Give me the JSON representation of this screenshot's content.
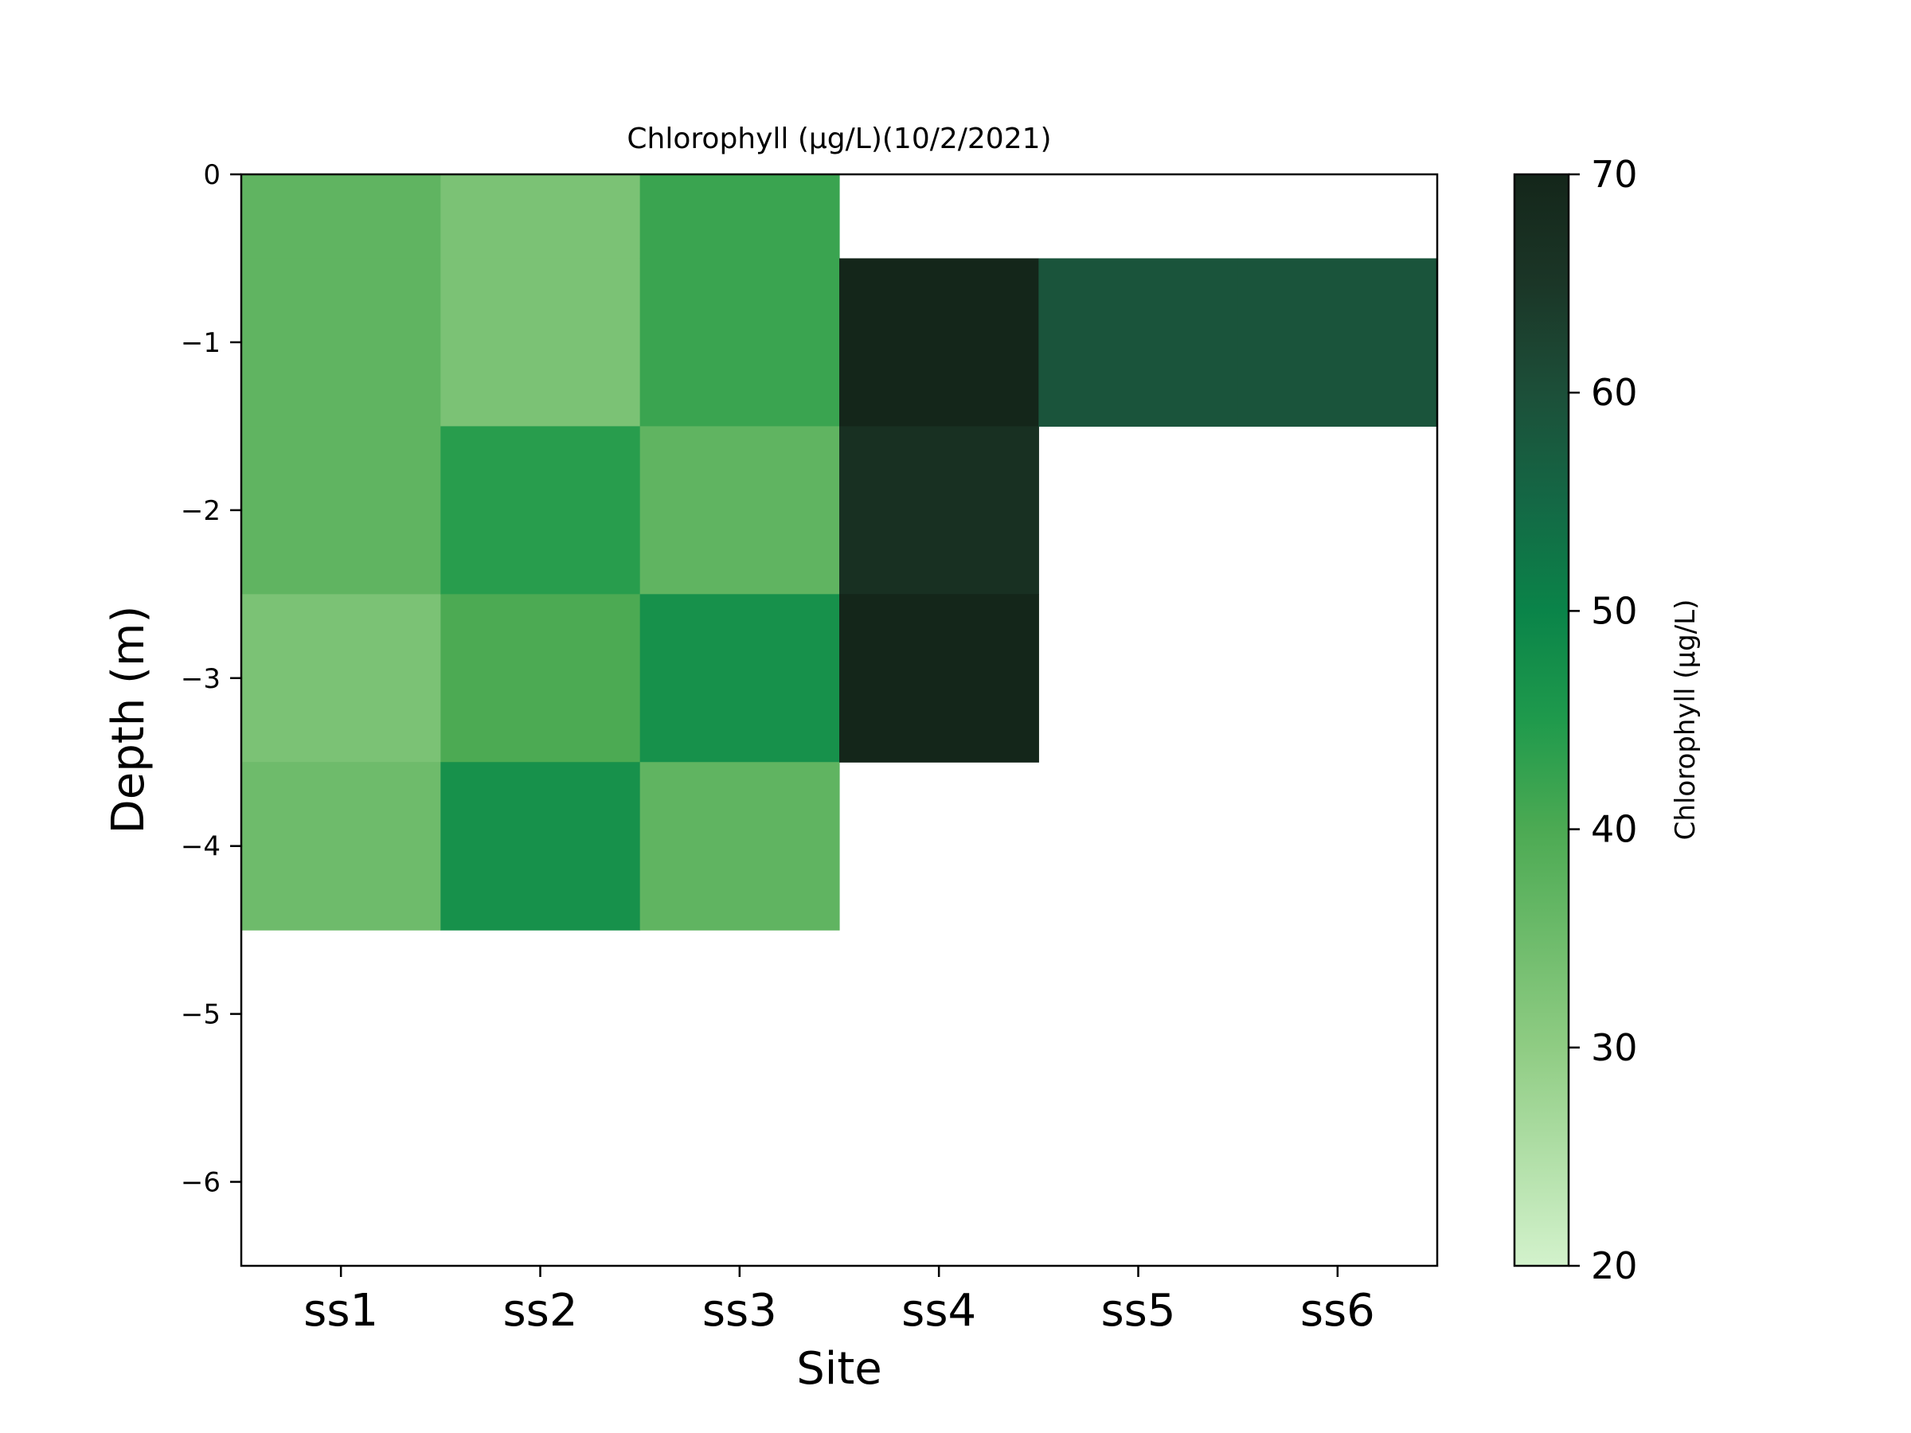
{
  "chart_data": {
    "type": "heatmap",
    "title": "Chlorophyll (µg/L)(10/2/2021)",
    "xlabel": "Site",
    "ylabel": "Depth (m)",
    "x_categories": [
      "ss1",
      "ss2",
      "ss3",
      "ss4",
      "ss5",
      "ss6"
    ],
    "y_ticks": [
      0,
      -1,
      -2,
      -3,
      -4,
      -5,
      -6
    ],
    "y_tick_labels": [
      "0",
      "−1",
      "−2",
      "−3",
      "−4",
      "−5",
      "−6"
    ],
    "ylim": [
      -6.5,
      0
    ],
    "depths": [
      0,
      -1,
      -2,
      -3,
      -4
    ],
    "cells": [
      {
        "site": "ss1",
        "depth": 0,
        "value": 37
      },
      {
        "site": "ss1",
        "depth": -1,
        "value": 37
      },
      {
        "site": "ss1",
        "depth": -2,
        "value": 37
      },
      {
        "site": "ss1",
        "depth": -3,
        "value": 33
      },
      {
        "site": "ss1",
        "depth": -4,
        "value": 35
      },
      {
        "site": "ss2",
        "depth": 0,
        "value": 33
      },
      {
        "site": "ss2",
        "depth": -1,
        "value": 33
      },
      {
        "site": "ss2",
        "depth": -2,
        "value": 44
      },
      {
        "site": "ss2",
        "depth": -3,
        "value": 40
      },
      {
        "site": "ss2",
        "depth": -4,
        "value": 47
      },
      {
        "site": "ss3",
        "depth": 0,
        "value": 42
      },
      {
        "site": "ss3",
        "depth": -1,
        "value": 42
      },
      {
        "site": "ss3",
        "depth": -2,
        "value": 37
      },
      {
        "site": "ss3",
        "depth": -3,
        "value": 47
      },
      {
        "site": "ss3",
        "depth": -4,
        "value": 37
      },
      {
        "site": "ss4",
        "depth": -1,
        "value": 70
      },
      {
        "site": "ss4",
        "depth": -2,
        "value": 67
      },
      {
        "site": "ss4",
        "depth": -3,
        "value": 70
      },
      {
        "site": "ss5",
        "depth": -1,
        "value": 59
      },
      {
        "site": "ss6",
        "depth": -1,
        "value": 59
      }
    ],
    "colorbar": {
      "label": "Chlorophyll (µg/L)",
      "min": 20,
      "max": 70,
      "ticks": [
        20,
        30,
        40,
        50,
        60,
        70
      ],
      "colormap": "Greens",
      "stops": [
        {
          "value": 20,
          "color": "#d3f2cc"
        },
        {
          "value": 30,
          "color": "#8fcc83"
        },
        {
          "value": 40,
          "color": "#4caa53"
        },
        {
          "value": 45,
          "color": "#1f9a4c"
        },
        {
          "value": 50,
          "color": "#0a8449"
        },
        {
          "value": 55,
          "color": "#146845"
        },
        {
          "value": 60,
          "color": "#1c4f39"
        },
        {
          "value": 65,
          "color": "#1b3627"
        },
        {
          "value": 70,
          "color": "#14261a"
        }
      ]
    },
    "grid": false
  }
}
